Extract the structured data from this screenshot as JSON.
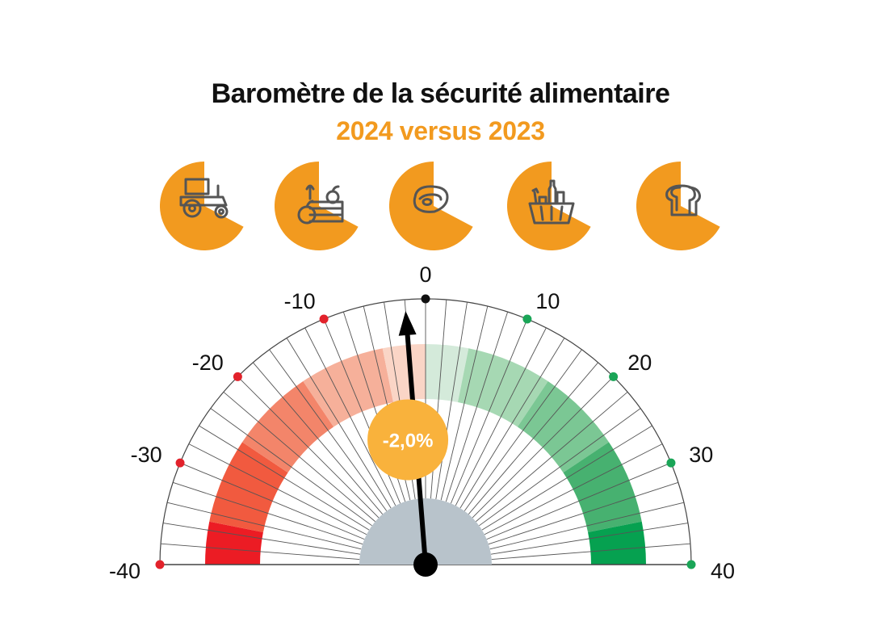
{
  "chart_data": {
    "type": "gauge",
    "title": "Baromètre de la sécurité alimentaire",
    "subtitle": "2024 versus 2023",
    "range": [
      -40,
      40
    ],
    "major_ticks": [
      -40,
      -30,
      -20,
      -10,
      0,
      10,
      20,
      30,
      40
    ],
    "tick_labels": [
      "-40",
      "-30",
      "-20",
      "-10",
      "0",
      "10",
      "20",
      "30",
      "40"
    ],
    "minor_tick_step": 2,
    "value": -2.0,
    "value_label": "-2,0%",
    "bands": [
      {
        "from": -40,
        "to": -35,
        "color": "#ec1c24"
      },
      {
        "from": -35,
        "to": -25,
        "color": "#f15a3f"
      },
      {
        "from": -25,
        "to": -15,
        "color": "#f3856a"
      },
      {
        "from": -15,
        "to": -5,
        "color": "#f6b09a"
      },
      {
        "from": -5,
        "to": 0,
        "color": "#fad5c6"
      },
      {
        "from": 0,
        "to": 5,
        "color": "#d4eada"
      },
      {
        "from": 5,
        "to": 15,
        "color": "#a6d8b3"
      },
      {
        "from": 15,
        "to": 25,
        "color": "#7bc794"
      },
      {
        "from": 25,
        "to": 35,
        "color": "#47b170"
      },
      {
        "from": 35,
        "to": 40,
        "color": "#06a150"
      }
    ],
    "negative_marker_color": "#e2222b",
    "positive_marker_color": "#1aa557",
    "zero_marker_color": "#111111",
    "needle_color": "#000000",
    "value_badge_color": "#f9b23c",
    "hub_color": "#b8c3cb"
  },
  "categories": [
    {
      "icon": "tractor-icon"
    },
    {
      "icon": "fruit-vegetable-crate-icon"
    },
    {
      "icon": "meat-steak-icon"
    },
    {
      "icon": "grocery-basket-icon"
    },
    {
      "icon": "bread-slice-icon"
    }
  ],
  "colors": {
    "accent": "#f29a1f",
    "icon_stroke": "#555555"
  }
}
